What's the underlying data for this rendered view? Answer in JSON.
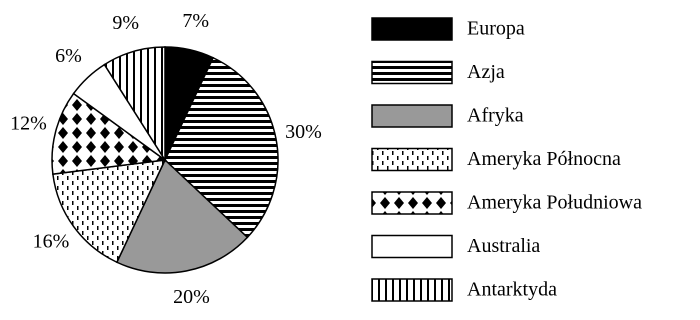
{
  "chart_data": {
    "type": "pie",
    "categories": [
      "Europa",
      "Azja",
      "Afryka",
      "Ameryka Północna",
      "Ameryka Południowa",
      "Australia",
      "Antarktyda"
    ],
    "values": [
      7,
      30,
      20,
      16,
      12,
      6,
      9
    ],
    "value_labels": [
      "7%",
      "30%",
      "20%",
      "16%",
      "12%",
      "6%",
      "9%"
    ]
  }
}
